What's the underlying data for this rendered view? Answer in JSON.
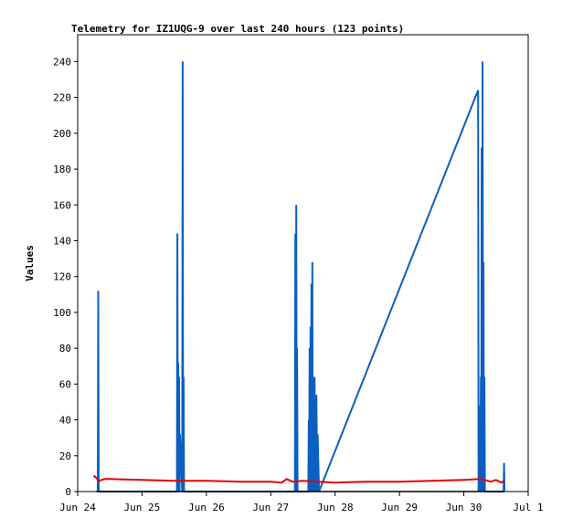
{
  "chart_data": {
    "type": "line",
    "title": "Telemetry for IZ1UQG-9 over last 240 hours (123 points)",
    "xlabel": "",
    "ylabel": "Values",
    "x_tick_labels": [
      "Jun 24",
      "Jun 25",
      "Jun 26",
      "Jun 27",
      "Jun 28",
      "Jun 29",
      "Jun 30",
      "Jul 1"
    ],
    "xlim": [
      "2024-06-24",
      "2024-07-01"
    ],
    "ylim": [
      0,
      255
    ],
    "y_ticks": [
      0,
      20,
      40,
      60,
      80,
      100,
      120,
      140,
      160,
      180,
      200,
      220,
      240
    ],
    "grid": false,
    "colors": {
      "series_blue": "#0b5fc0",
      "series_red": "#e60000",
      "series_black": "#000000"
    },
    "series": [
      {
        "color": "#0b5fc0",
        "x": [
          "2024-06-24T07:30",
          "2024-06-24T07:40",
          "2024-06-24T07:50",
          "2024-06-25T13:00",
          "2024-06-25T13:10",
          "2024-06-25T13:20",
          "2024-06-25T13:30",
          "2024-06-25T13:40",
          "2024-06-25T13:50",
          "2024-06-25T14:00",
          "2024-06-25T14:10",
          "2024-06-25T15:00",
          "2024-06-25T15:10",
          "2024-06-25T15:20",
          "2024-06-25T15:30",
          "2024-06-25T15:40",
          "2024-06-27T09:00",
          "2024-06-27T09:10",
          "2024-06-27T09:20",
          "2024-06-27T09:30",
          "2024-06-27T09:40",
          "2024-06-27T09:50",
          "2024-06-27T10:00",
          "2024-06-27T14:00",
          "2024-06-27T14:10",
          "2024-06-27T14:20",
          "2024-06-27T14:30",
          "2024-06-27T14:40",
          "2024-06-27T14:50",
          "2024-06-27T15:00",
          "2024-06-27T15:10",
          "2024-06-27T15:20",
          "2024-06-27T15:30",
          "2024-06-27T15:40",
          "2024-06-27T15:50",
          "2024-06-27T16:00",
          "2024-06-27T16:20",
          "2024-06-27T16:40",
          "2024-06-27T17:00",
          "2024-06-27T17:20",
          "2024-06-27T17:30",
          "2024-06-27T18:00",
          "2024-06-30T05:20",
          "2024-06-30T05:30",
          "2024-06-30T05:40",
          "2024-06-30T05:50",
          "2024-06-30T06:00",
          "2024-06-30T06:10",
          "2024-06-30T06:20",
          "2024-06-30T06:30",
          "2024-06-30T06:40",
          "2024-06-30T06:50",
          "2024-06-30T07:00",
          "2024-06-30T07:10",
          "2024-06-30T07:20",
          "2024-06-30T07:30",
          "2024-06-30T07:40",
          "2024-06-30T07:50",
          "2024-06-30T08:00",
          "2024-06-30T14:50",
          "2024-06-30T15:00",
          "2024-06-30T15:10"
        ],
        "values": [
          0,
          112,
          0,
          0,
          144,
          0,
          72,
          0,
          64,
          0,
          32,
          0,
          240,
          0,
          64,
          0,
          0,
          144,
          0,
          160,
          0,
          80,
          0,
          0,
          40,
          0,
          80,
          0,
          92,
          0,
          116,
          0,
          128,
          0,
          64,
          0,
          64,
          0,
          54,
          0,
          32,
          0,
          224,
          0,
          16,
          0,
          48,
          0,
          64,
          0,
          192,
          0,
          240,
          0,
          128,
          0,
          64,
          0,
          0,
          0,
          16,
          0
        ]
      },
      {
        "color": "#e60000",
        "x": [
          "2024-06-24T06:00",
          "2024-06-24T08:00",
          "2024-06-24T10:00",
          "2024-06-24T12:00",
          "2024-06-25T00:00",
          "2024-06-25T12:00",
          "2024-06-26T00:00",
          "2024-06-26T12:00",
          "2024-06-27T00:00",
          "2024-06-27T04:00",
          "2024-06-27T06:00",
          "2024-06-27T08:00",
          "2024-06-27T12:00",
          "2024-06-27T18:00",
          "2024-06-28T00:00",
          "2024-06-28T12:00",
          "2024-06-29T00:00",
          "2024-06-29T12:00",
          "2024-06-30T00:00",
          "2024-06-30T06:00",
          "2024-06-30T08:00",
          "2024-06-30T10:00",
          "2024-06-30T12:00",
          "2024-06-30T14:00",
          "2024-06-30T15:00"
        ],
        "values": [
          9,
          6,
          7,
          7,
          6.5,
          6,
          6,
          5.5,
          5.5,
          5,
          7,
          5.5,
          6,
          5.5,
          5,
          5.5,
          5.5,
          6,
          6.5,
          7,
          6.5,
          5.5,
          6.5,
          5,
          6
        ]
      },
      {
        "color": "#000000",
        "x": [
          "2024-06-24T07:00",
          "2024-06-30T15:00"
        ],
        "values": [
          0,
          0
        ]
      }
    ]
  }
}
